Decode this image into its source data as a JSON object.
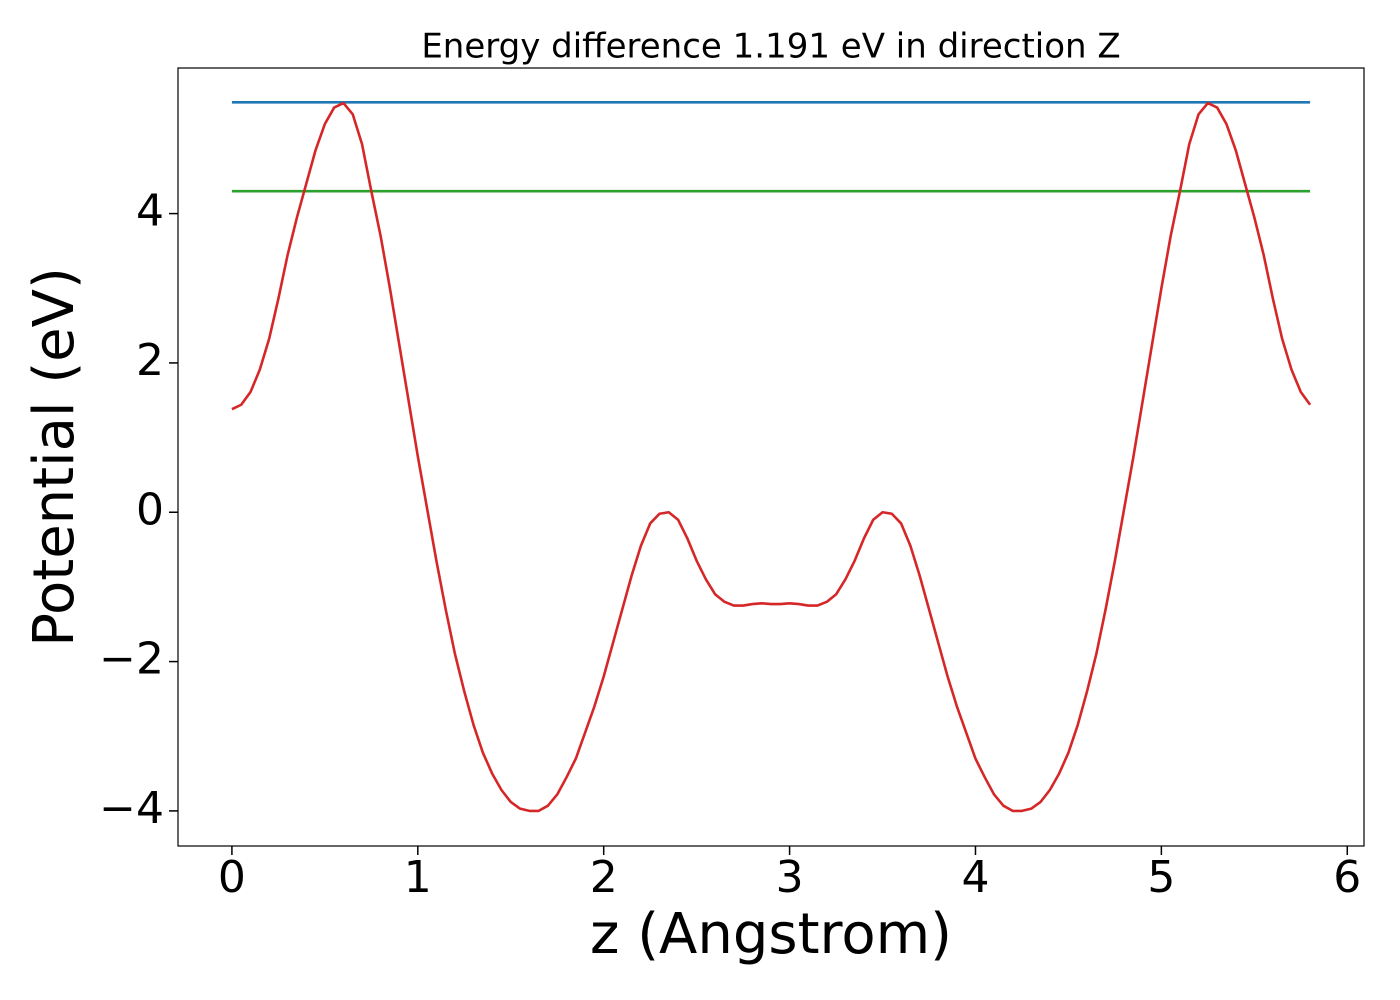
{
  "chart_data": {
    "type": "line",
    "title": "Energy difference 1.191 eV in direction Z",
    "xlabel": "z (Angstrom)",
    "ylabel": "Potential (eV)",
    "xlim": [
      -0.29,
      6.09
    ],
    "ylim": [
      -4.47,
      5.95
    ],
    "xticks": [
      0,
      1,
      2,
      3,
      4,
      5,
      6
    ],
    "yticks": [
      {
        "value": -4,
        "label": "−4"
      },
      {
        "value": -2,
        "label": "−2"
      },
      0,
      2,
      4
    ],
    "grid": false,
    "series": [
      {
        "color": "#1f77b4",
        "x": [
          0,
          5.8
        ],
        "values": [
          5.49,
          5.49
        ]
      },
      {
        "color": "#2ca02c",
        "x": [
          0,
          5.8
        ],
        "values": [
          4.3,
          4.3
        ]
      },
      {
        "color": "#d62728",
        "x": [
          0,
          0.05,
          0.1,
          0.15,
          0.2,
          0.25,
          0.3,
          0.35,
          0.4,
          0.45,
          0.5,
          0.55,
          0.6,
          0.65,
          0.7,
          0.75,
          0.8,
          0.85,
          0.9,
          0.95,
          1.0,
          1.05,
          1.1,
          1.15,
          1.2,
          1.25,
          1.3,
          1.35,
          1.4,
          1.45,
          1.5,
          1.55,
          1.6,
          1.65,
          1.7,
          1.75,
          1.8,
          1.85,
          1.9,
          1.95,
          2.0,
          2.05,
          2.1,
          2.15,
          2.2,
          2.25,
          2.3,
          2.35,
          2.4,
          2.45,
          2.5,
          2.55,
          2.6,
          2.65,
          2.7,
          2.75,
          2.8,
          2.85,
          2.9,
          2.95,
          3.0,
          3.05,
          3.1,
          3.15,
          3.2,
          3.25,
          3.3,
          3.35,
          3.4,
          3.45,
          3.5,
          3.55,
          3.6,
          3.65,
          3.7,
          3.75,
          3.8,
          3.85,
          3.9,
          3.95,
          4.0,
          4.05,
          4.1,
          4.15,
          4.2,
          4.25,
          4.3,
          4.35,
          4.4,
          4.45,
          4.5,
          4.55,
          4.6,
          4.65,
          4.7,
          4.75,
          4.8,
          4.85,
          4.9,
          4.95,
          5.0,
          5.05,
          5.1,
          5.15,
          5.2,
          5.25,
          5.3,
          5.35,
          5.4,
          5.45,
          5.5,
          5.55,
          5.6,
          5.65,
          5.7,
          5.75,
          5.8
        ],
        "values": [
          1.38,
          1.44,
          1.61,
          1.91,
          2.32,
          2.86,
          3.45,
          3.95,
          4.4,
          4.85,
          5.2,
          5.42,
          5.48,
          5.33,
          4.93,
          4.3,
          3.7,
          3.0,
          2.25,
          1.5,
          0.75,
          0.05,
          -0.65,
          -1.3,
          -1.9,
          -2.4,
          -2.85,
          -3.22,
          -3.5,
          -3.72,
          -3.88,
          -3.97,
          -4.0,
          -4.0,
          -3.93,
          -3.78,
          -3.55,
          -3.3,
          -2.95,
          -2.6,
          -2.2,
          -1.75,
          -1.3,
          -0.85,
          -0.45,
          -0.15,
          -0.02,
          0.0,
          -0.1,
          -0.35,
          -0.65,
          -0.9,
          -1.1,
          -1.2,
          -1.25,
          -1.25,
          -1.23,
          -1.22,
          -1.23,
          -1.23,
          -1.22,
          -1.23,
          -1.25,
          -1.25,
          -1.2,
          -1.1,
          -0.9,
          -0.65,
          -0.35,
          -0.1,
          0.0,
          -0.02,
          -0.15,
          -0.45,
          -0.85,
          -1.3,
          -1.75,
          -2.2,
          -2.6,
          -2.95,
          -3.3,
          -3.55,
          -3.78,
          -3.93,
          -4.0,
          -4.0,
          -3.97,
          -3.88,
          -3.72,
          -3.5,
          -3.22,
          -2.85,
          -2.4,
          -1.9,
          -1.3,
          -0.65,
          0.05,
          0.75,
          1.5,
          2.25,
          3.0,
          3.7,
          4.3,
          4.93,
          5.33,
          5.48,
          5.42,
          5.2,
          4.85,
          4.4,
          3.95,
          3.45,
          2.86,
          2.32,
          1.91,
          1.61,
          1.44
        ]
      }
    ]
  }
}
